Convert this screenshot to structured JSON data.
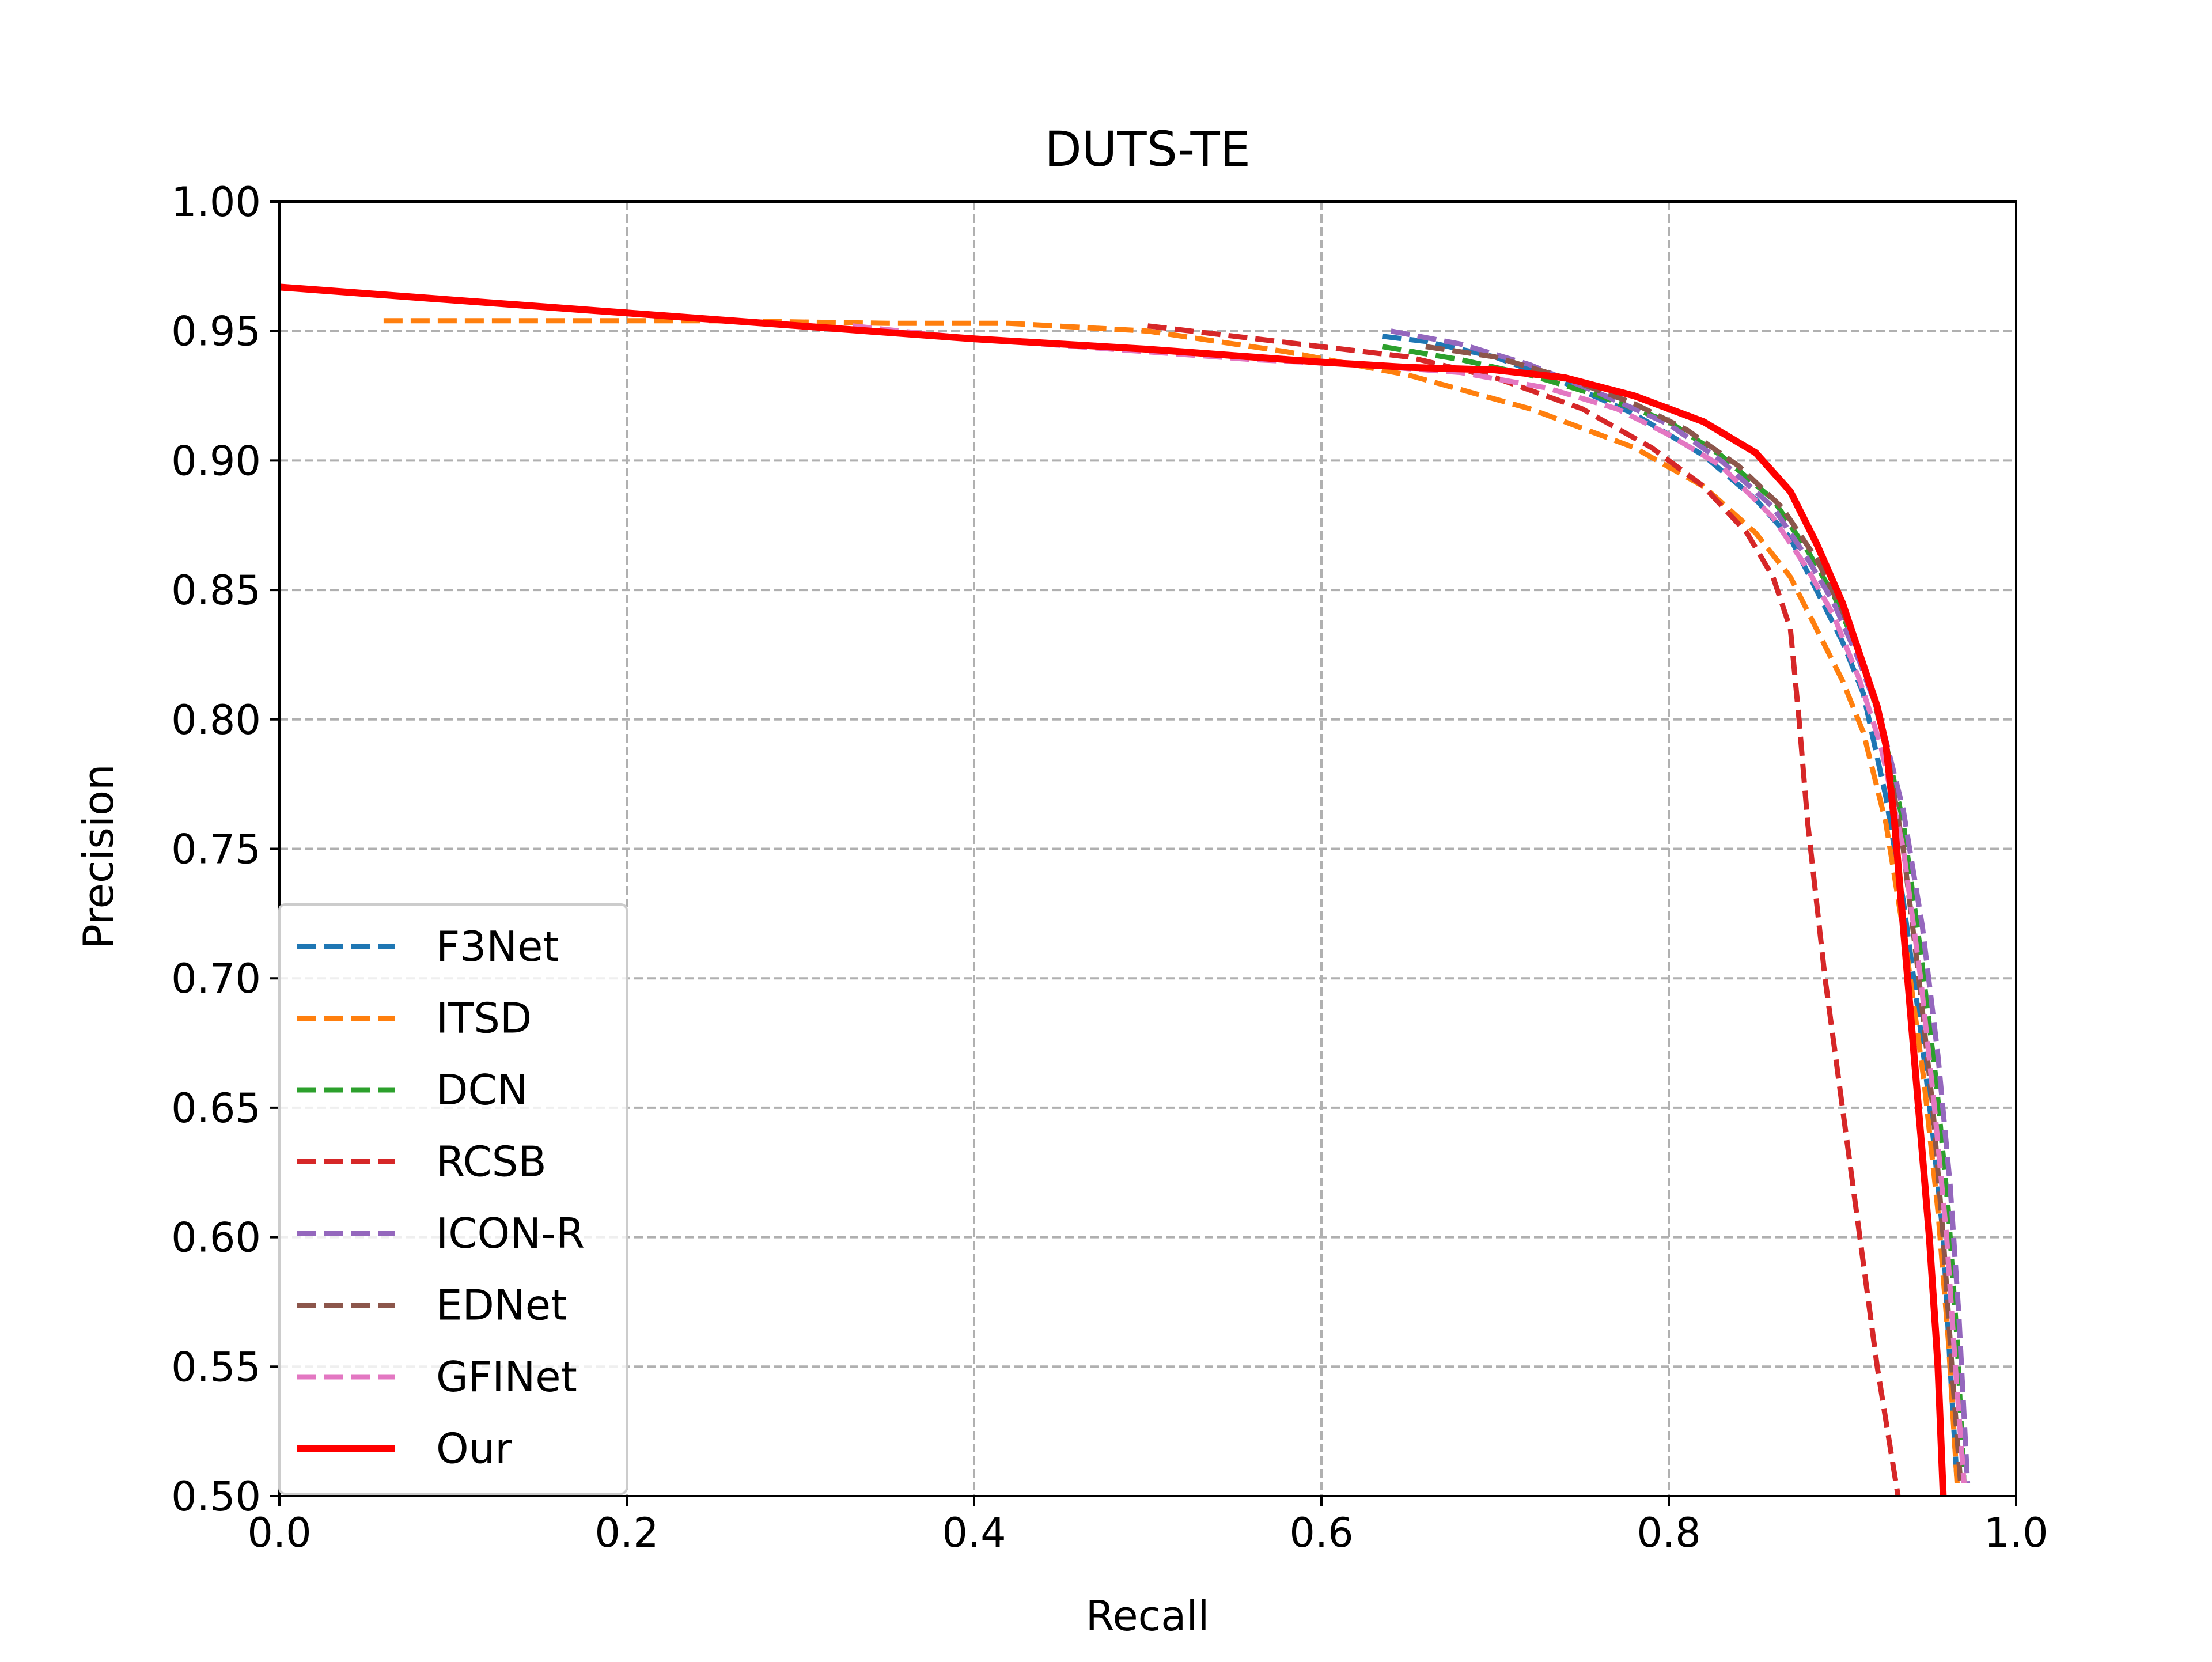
{
  "chart_data": {
    "type": "line",
    "title": "DUTS-TE",
    "xlabel": "Recall",
    "ylabel": "Precision",
    "xlim": [
      0.0,
      1.0
    ],
    "ylim": [
      0.5,
      1.0
    ],
    "xticks": [
      "0.0",
      "0.2",
      "0.4",
      "0.6",
      "0.8",
      "1.0"
    ],
    "yticks": [
      "0.50",
      "0.55",
      "0.60",
      "0.65",
      "0.70",
      "0.75",
      "0.80",
      "0.85",
      "0.90",
      "0.95",
      "1.00"
    ],
    "grid": true,
    "legend_position": "lower-left",
    "series": [
      {
        "name": "F3Net",
        "color": "#1f77b4",
        "style": "dashed",
        "x": [
          0.635,
          0.66,
          0.7,
          0.74,
          0.78,
          0.82,
          0.85,
          0.87,
          0.885,
          0.9,
          0.912,
          0.925,
          0.935,
          0.945,
          0.952,
          0.958,
          0.962,
          0.966
        ],
        "y": [
          0.948,
          0.946,
          0.94,
          0.93,
          0.918,
          0.902,
          0.885,
          0.87,
          0.85,
          0.83,
          0.81,
          0.77,
          0.73,
          0.68,
          0.64,
          0.6,
          0.55,
          0.505
        ]
      },
      {
        "name": "ITSD",
        "color": "#ff7f0e",
        "style": "dashed",
        "x": [
          0.06,
          0.15,
          0.25,
          0.35,
          0.42,
          0.5,
          0.58,
          0.65,
          0.72,
          0.78,
          0.82,
          0.85,
          0.87,
          0.885,
          0.9,
          0.912,
          0.925,
          0.937,
          0.947,
          0.955,
          0.961,
          0.966
        ],
        "y": [
          0.954,
          0.954,
          0.954,
          0.953,
          0.953,
          0.95,
          0.942,
          0.933,
          0.92,
          0.905,
          0.89,
          0.872,
          0.855,
          0.835,
          0.815,
          0.795,
          0.76,
          0.71,
          0.66,
          0.61,
          0.56,
          0.505
        ]
      },
      {
        "name": "DCN",
        "color": "#2ca02c",
        "style": "dashed",
        "x": [
          0.635,
          0.68,
          0.72,
          0.76,
          0.8,
          0.83,
          0.86,
          0.88,
          0.895,
          0.91,
          0.922,
          0.935,
          0.945,
          0.954,
          0.961,
          0.966,
          0.97
        ],
        "y": [
          0.944,
          0.939,
          0.933,
          0.925,
          0.915,
          0.902,
          0.885,
          0.865,
          0.848,
          0.825,
          0.8,
          0.76,
          0.71,
          0.66,
          0.61,
          0.56,
          0.505
        ]
      },
      {
        "name": "RCSB",
        "color": "#d62728",
        "style": "dashed",
        "x": [
          0.5,
          0.55,
          0.6,
          0.65,
          0.7,
          0.75,
          0.79,
          0.82,
          0.845,
          0.86,
          0.87,
          0.875,
          0.88,
          0.89,
          0.9,
          0.91,
          0.92,
          0.932
        ],
        "y": [
          0.952,
          0.948,
          0.944,
          0.94,
          0.932,
          0.92,
          0.905,
          0.89,
          0.872,
          0.855,
          0.835,
          0.8,
          0.76,
          0.7,
          0.65,
          0.6,
          0.55,
          0.5
        ]
      },
      {
        "name": "ICON-R",
        "color": "#9467bd",
        "style": "dashed",
        "x": [
          0.64,
          0.68,
          0.72,
          0.76,
          0.8,
          0.83,
          0.86,
          0.88,
          0.895,
          0.91,
          0.922,
          0.935,
          0.946,
          0.955,
          0.962,
          0.967,
          0.972
        ],
        "y": [
          0.95,
          0.945,
          0.937,
          0.926,
          0.914,
          0.9,
          0.882,
          0.862,
          0.845,
          0.822,
          0.8,
          0.765,
          0.72,
          0.67,
          0.62,
          0.57,
          0.505
        ]
      },
      {
        "name": "EDNet",
        "color": "#8c564b",
        "style": "dashed",
        "x": [
          0.66,
          0.7,
          0.74,
          0.78,
          0.81,
          0.84,
          0.865,
          0.885,
          0.9,
          0.913,
          0.925,
          0.935,
          0.944,
          0.952,
          0.958,
          0.963,
          0.968
        ],
        "y": [
          0.944,
          0.94,
          0.932,
          0.922,
          0.912,
          0.898,
          0.882,
          0.862,
          0.842,
          0.82,
          0.79,
          0.75,
          0.7,
          0.65,
          0.6,
          0.55,
          0.505
        ]
      },
      {
        "name": "GFINet",
        "color": "#e377c2",
        "style": "dashed",
        "x": [
          0.33,
          0.4,
          0.48,
          0.56,
          0.62,
          0.68,
          0.73,
          0.77,
          0.8,
          0.83,
          0.86,
          0.88,
          0.895,
          0.91,
          0.922,
          0.935,
          0.945,
          0.953,
          0.96,
          0.965,
          0.97
        ],
        "y": [
          0.952,
          0.947,
          0.943,
          0.939,
          0.937,
          0.934,
          0.928,
          0.92,
          0.91,
          0.898,
          0.878,
          0.858,
          0.84,
          0.815,
          0.79,
          0.75,
          0.7,
          0.65,
          0.6,
          0.55,
          0.505
        ]
      },
      {
        "name": "Our",
        "color": "#ff0000",
        "style": "solid",
        "x": [
          0.0,
          0.1,
          0.2,
          0.3,
          0.4,
          0.5,
          0.6,
          0.65,
          0.7,
          0.74,
          0.78,
          0.82,
          0.85,
          0.87,
          0.885,
          0.9,
          0.91,
          0.92,
          0.925,
          0.93,
          0.935,
          0.94,
          0.945,
          0.95,
          0.955,
          0.958
        ],
        "y": [
          0.967,
          0.962,
          0.957,
          0.952,
          0.947,
          0.943,
          0.938,
          0.936,
          0.935,
          0.932,
          0.925,
          0.915,
          0.903,
          0.888,
          0.868,
          0.845,
          0.825,
          0.805,
          0.79,
          0.76,
          0.72,
          0.68,
          0.64,
          0.6,
          0.55,
          0.5
        ]
      }
    ]
  }
}
